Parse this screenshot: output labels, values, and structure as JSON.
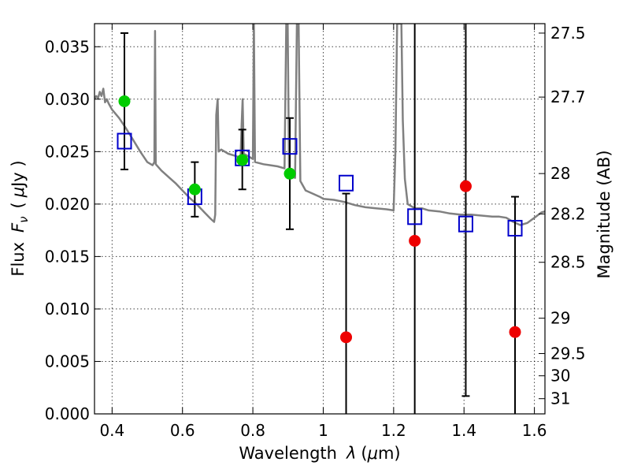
{
  "chart_data": {
    "type": "scatter",
    "xlabel_text": "Wavelength",
    "xlabel_symbol": "λ",
    "xlabel_unit_open": "(",
    "xlabel_unit_mu": "μ",
    "xlabel_unit_rest": "m)",
    "ylabel_text": "Flux",
    "ylabel_symbol_F": "F",
    "ylabel_symbol_sub": "ν",
    "ylabel_unit_open": "(",
    "ylabel_unit_mu": "μ",
    "ylabel_unit_rest": "Jy )",
    "y2label": "Magnitude (AB)",
    "xlim": [
      0.35,
      1.63
    ],
    "ylim": [
      0.0,
      0.0372
    ],
    "grid": true,
    "x_ticks": [
      {
        "value": 0.4,
        "label": "0.4"
      },
      {
        "value": 0.6,
        "label": "0.6"
      },
      {
        "value": 0.8,
        "label": "0.8"
      },
      {
        "value": 1.0,
        "label": "1"
      },
      {
        "value": 1.2,
        "label": "1.2"
      },
      {
        "value": 1.4,
        "label": "1.4"
      },
      {
        "value": 1.6,
        "label": "1.6"
      }
    ],
    "y_ticks": [
      {
        "value": 0.0,
        "label": "0.000"
      },
      {
        "value": 0.005,
        "label": "0.005"
      },
      {
        "value": 0.01,
        "label": "0.010"
      },
      {
        "value": 0.015,
        "label": "0.015"
      },
      {
        "value": 0.02,
        "label": "0.020"
      },
      {
        "value": 0.025,
        "label": "0.025"
      },
      {
        "value": 0.03,
        "label": "0.030"
      },
      {
        "value": 0.035,
        "label": "0.035"
      }
    ],
    "y2_ticks": [
      {
        "flux": 0.0363,
        "label": "27.5"
      },
      {
        "flux": 0.0302,
        "label": "27.7"
      },
      {
        "flux": 0.02291,
        "label": "28"
      },
      {
        "flux": 0.01906,
        "label": "28.2"
      },
      {
        "flux": 0.01445,
        "label": "28.5"
      },
      {
        "flux": 0.00912,
        "label": "29"
      },
      {
        "flux": 0.00575,
        "label": "29.5"
      },
      {
        "flux": 0.00363,
        "label": "30"
      },
      {
        "flux": 0.00145,
        "label": "31"
      }
    ],
    "spectrum": {
      "color": "#808080",
      "points": [
        [
          0.35,
          0.03
        ],
        [
          0.355,
          0.0303
        ],
        [
          0.36,
          0.0301
        ],
        [
          0.365,
          0.0307
        ],
        [
          0.37,
          0.0303
        ],
        [
          0.375,
          0.031
        ],
        [
          0.38,
          0.0297
        ],
        [
          0.385,
          0.03
        ],
        [
          0.39,
          0.0296
        ],
        [
          0.4,
          0.029
        ],
        [
          0.42,
          0.0282
        ],
        [
          0.44,
          0.0272
        ],
        [
          0.46,
          0.0261
        ],
        [
          0.48,
          0.025
        ],
        [
          0.5,
          0.024
        ],
        [
          0.515,
          0.0237
        ],
        [
          0.52,
          0.024
        ],
        [
          0.522,
          0.0365
        ],
        [
          0.524,
          0.0238
        ],
        [
          0.54,
          0.0232
        ],
        [
          0.56,
          0.0226
        ],
        [
          0.58,
          0.022
        ],
        [
          0.6,
          0.0213
        ],
        [
          0.62,
          0.0206
        ],
        [
          0.64,
          0.02
        ],
        [
          0.66,
          0.0193
        ],
        [
          0.68,
          0.0186
        ],
        [
          0.69,
          0.0183
        ],
        [
          0.693,
          0.019
        ],
        [
          0.696,
          0.0285
        ],
        [
          0.7,
          0.03
        ],
        [
          0.703,
          0.025
        ],
        [
          0.71,
          0.0252
        ],
        [
          0.73,
          0.0248
        ],
        [
          0.75,
          0.0246
        ],
        [
          0.765,
          0.0244
        ],
        [
          0.768,
          0.0275
        ],
        [
          0.771,
          0.03
        ],
        [
          0.774,
          0.0248
        ],
        [
          0.79,
          0.0245
        ],
        [
          0.8,
          0.0243
        ],
        [
          0.803,
          0.0372
        ],
        [
          0.806,
          0.024
        ],
        [
          0.83,
          0.0238
        ],
        [
          0.85,
          0.0237
        ],
        [
          0.87,
          0.0236
        ],
        [
          0.89,
          0.0234
        ],
        [
          0.895,
          0.0372
        ],
        [
          0.899,
          0.0372
        ],
        [
          0.903,
          0.023
        ],
        [
          0.91,
          0.0226
        ],
        [
          0.92,
          0.0225
        ],
        [
          0.925,
          0.0372
        ],
        [
          0.93,
          0.0372
        ],
        [
          0.935,
          0.0222
        ],
        [
          0.95,
          0.0213
        ],
        [
          0.97,
          0.021
        ],
        [
          0.99,
          0.0207
        ],
        [
          1.0,
          0.0205
        ],
        [
          1.03,
          0.0204
        ],
        [
          1.06,
          0.0202
        ],
        [
          1.09,
          0.0199
        ],
        [
          1.12,
          0.0197
        ],
        [
          1.15,
          0.0196
        ],
        [
          1.18,
          0.0195
        ],
        [
          1.2,
          0.0194
        ],
        [
          1.205,
          0.025
        ],
        [
          1.21,
          0.0372
        ],
        [
          1.222,
          0.0372
        ],
        [
          1.226,
          0.028
        ],
        [
          1.232,
          0.0224
        ],
        [
          1.24,
          0.02
        ],
        [
          1.26,
          0.0196
        ],
        [
          1.28,
          0.0196
        ],
        [
          1.3,
          0.0194
        ],
        [
          1.33,
          0.0193
        ],
        [
          1.36,
          0.0191
        ],
        [
          1.39,
          0.019
        ],
        [
          1.42,
          0.019
        ],
        [
          1.45,
          0.0189
        ],
        [
          1.48,
          0.0188
        ],
        [
          1.5,
          0.0188
        ],
        [
          1.52,
          0.0187
        ],
        [
          1.54,
          0.0183
        ],
        [
          1.56,
          0.018
        ],
        [
          1.58,
          0.0182
        ],
        [
          1.6,
          0.0187
        ],
        [
          1.62,
          0.0192
        ],
        [
          1.63,
          0.0193
        ]
      ]
    },
    "model_squares": {
      "color": "#0000cc",
      "points": [
        {
          "x": 0.435,
          "y": 0.026
        },
        {
          "x": 0.635,
          "y": 0.0207
        },
        {
          "x": 0.77,
          "y": 0.0244
        },
        {
          "x": 0.905,
          "y": 0.0255
        },
        {
          "x": 1.065,
          "y": 0.022
        },
        {
          "x": 1.26,
          "y": 0.0188
        },
        {
          "x": 1.405,
          "y": 0.0181
        },
        {
          "x": 1.545,
          "y": 0.0177
        }
      ]
    },
    "detections": {
      "color": "#00cc00",
      "points": [
        {
          "x": 0.435,
          "y": 0.0298,
          "yerr_low": 0.0233,
          "yerr_high": 0.0363
        },
        {
          "x": 0.635,
          "y": 0.0214,
          "yerr_low": 0.0188,
          "yerr_high": 0.024
        },
        {
          "x": 0.77,
          "y": 0.0242,
          "yerr_low": 0.0214,
          "yerr_high": 0.0271
        },
        {
          "x": 0.905,
          "y": 0.0229,
          "yerr_low": 0.0176,
          "yerr_high": 0.0282
        }
      ]
    },
    "non_detections": {
      "color": "#ee0000",
      "points": [
        {
          "x": 1.065,
          "y": 0.0073,
          "yerr_low": 0.0,
          "yerr_high": 0.021
        },
        {
          "x": 1.26,
          "y": 0.0165,
          "yerr_low": 0.0,
          "yerr_high": 0.0372
        },
        {
          "x": 1.405,
          "y": 0.0217,
          "yerr_low": 0.0017,
          "yerr_high": 0.0372
        },
        {
          "x": 1.545,
          "y": 0.0078,
          "yerr_low": 0.0,
          "yerr_high": 0.0207
        }
      ]
    }
  }
}
